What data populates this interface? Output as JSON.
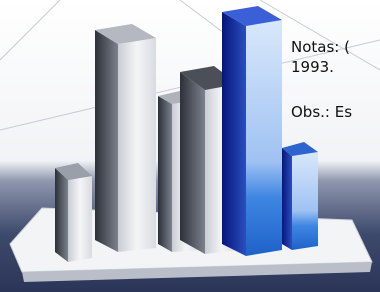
{
  "notes": {
    "line1": "Notas: (",
    "line2": "1993."
  },
  "observation": "Obs.: Es"
}
